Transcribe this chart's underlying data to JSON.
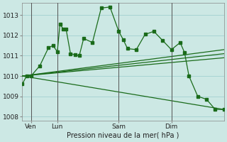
{
  "background_color": "#cce8e4",
  "grid_color": "#99cccc",
  "line_color": "#1a6b1a",
  "marker_color": "#1a6b1a",
  "xlabel": "Pression niveau de la mer( hPa )",
  "ylim": [
    1007.8,
    1013.6
  ],
  "yticks": [
    1008,
    1009,
    1010,
    1011,
    1012,
    1013
  ],
  "day_labels": [
    "Ven",
    "Lun",
    "Sam",
    "Dim"
  ],
  "day_positions": [
    1,
    4,
    11,
    17
  ],
  "xlim": [
    0,
    23
  ],
  "series1_x": [
    0,
    0.5,
    1,
    2,
    3,
    3.5,
    4,
    4.3,
    4.7,
    5,
    5.5,
    6,
    6.5,
    7,
    8,
    9,
    10,
    11,
    11.5,
    12,
    13,
    14,
    15,
    16,
    17,
    18,
    18.5,
    19,
    20,
    21,
    22,
    23
  ],
  "series1_y": [
    1009.6,
    1010.0,
    1010.0,
    1010.5,
    1011.4,
    1011.5,
    1011.2,
    1012.55,
    1012.3,
    1012.3,
    1011.1,
    1011.05,
    1011.0,
    1011.85,
    1011.65,
    1013.35,
    1013.4,
    1012.2,
    1011.8,
    1011.35,
    1011.3,
    1012.05,
    1012.2,
    1011.75,
    1011.3,
    1011.65,
    1011.15,
    1010.0,
    1009.0,
    1008.85,
    1008.35,
    1008.35
  ],
  "series2_x": [
    0,
    23
  ],
  "series2_y": [
    1010.0,
    1011.3
  ],
  "series3_x": [
    0,
    23
  ],
  "series3_y": [
    1010.0,
    1011.1
  ],
  "series4_x": [
    0,
    23
  ],
  "series4_y": [
    1010.0,
    1010.9
  ],
  "series5_x": [
    0,
    23
  ],
  "series5_y": [
    1010.0,
    1008.35
  ]
}
